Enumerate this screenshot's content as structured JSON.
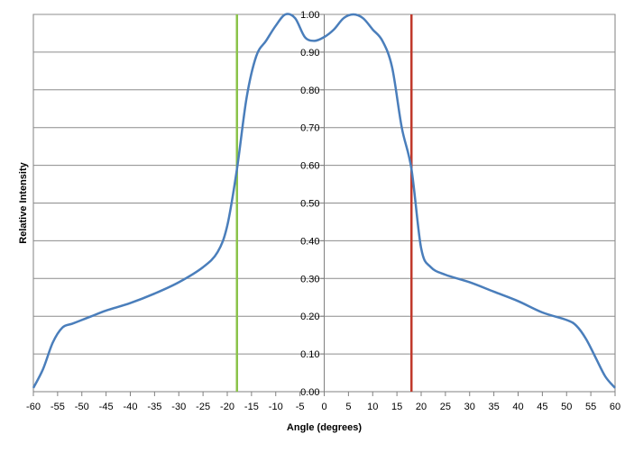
{
  "chart_data": {
    "type": "line",
    "title": "",
    "xlabel": "Angle (degrees)",
    "ylabel": "Relative Intensity",
    "xlim": [
      -60,
      60
    ],
    "ylim": [
      0,
      1
    ],
    "x_ticks": [
      "-60",
      "-55",
      "-50",
      "-45",
      "-40",
      "-35",
      "-30",
      "-25",
      "-20",
      "-15",
      "-10",
      "-5",
      "0",
      "5",
      "10",
      "15",
      "20",
      "25",
      "30",
      "35",
      "40",
      "45",
      "50",
      "55",
      "60"
    ],
    "y_ticks": [
      "0.00",
      "0.10",
      "0.20",
      "0.30",
      "0.40",
      "0.50",
      "0.60",
      "0.70",
      "0.80",
      "0.90",
      "1.00"
    ],
    "grid": "horizontal",
    "legend": "none",
    "series": [
      {
        "color": "#4a7ebb",
        "points": [
          [
            -60,
            0.01
          ],
          [
            -58,
            0.06
          ],
          [
            -56,
            0.13
          ],
          [
            -54,
            0.17
          ],
          [
            -52,
            0.18
          ],
          [
            -50,
            0.19
          ],
          [
            -48,
            0.2
          ],
          [
            -45,
            0.215
          ],
          [
            -40,
            0.235
          ],
          [
            -35,
            0.26
          ],
          [
            -30,
            0.29
          ],
          [
            -25,
            0.33
          ],
          [
            -22,
            0.37
          ],
          [
            -20,
            0.44
          ],
          [
            -18,
            0.59
          ],
          [
            -16,
            0.78
          ],
          [
            -14,
            0.89
          ],
          [
            -12,
            0.93
          ],
          [
            -10,
            0.97
          ],
          [
            -8,
            1.0
          ],
          [
            -6,
            0.99
          ],
          [
            -4,
            0.94
          ],
          [
            -2,
            0.93
          ],
          [
            0,
            0.94
          ],
          [
            2,
            0.96
          ],
          [
            4,
            0.99
          ],
          [
            6,
            1.0
          ],
          [
            8,
            0.99
          ],
          [
            10,
            0.96
          ],
          [
            12,
            0.93
          ],
          [
            14,
            0.86
          ],
          [
            16,
            0.7
          ],
          [
            18,
            0.59
          ],
          [
            20,
            0.38
          ],
          [
            22,
            0.33
          ],
          [
            25,
            0.31
          ],
          [
            30,
            0.29
          ],
          [
            35,
            0.265
          ],
          [
            40,
            0.24
          ],
          [
            45,
            0.21
          ],
          [
            50,
            0.19
          ],
          [
            52,
            0.175
          ],
          [
            54,
            0.14
          ],
          [
            56,
            0.09
          ],
          [
            58,
            0.04
          ],
          [
            60,
            0.01
          ]
        ]
      }
    ],
    "vertical_lines": [
      {
        "x": -18,
        "color": "#8bc34a"
      },
      {
        "x": 18,
        "color": "#c0392b"
      }
    ]
  }
}
